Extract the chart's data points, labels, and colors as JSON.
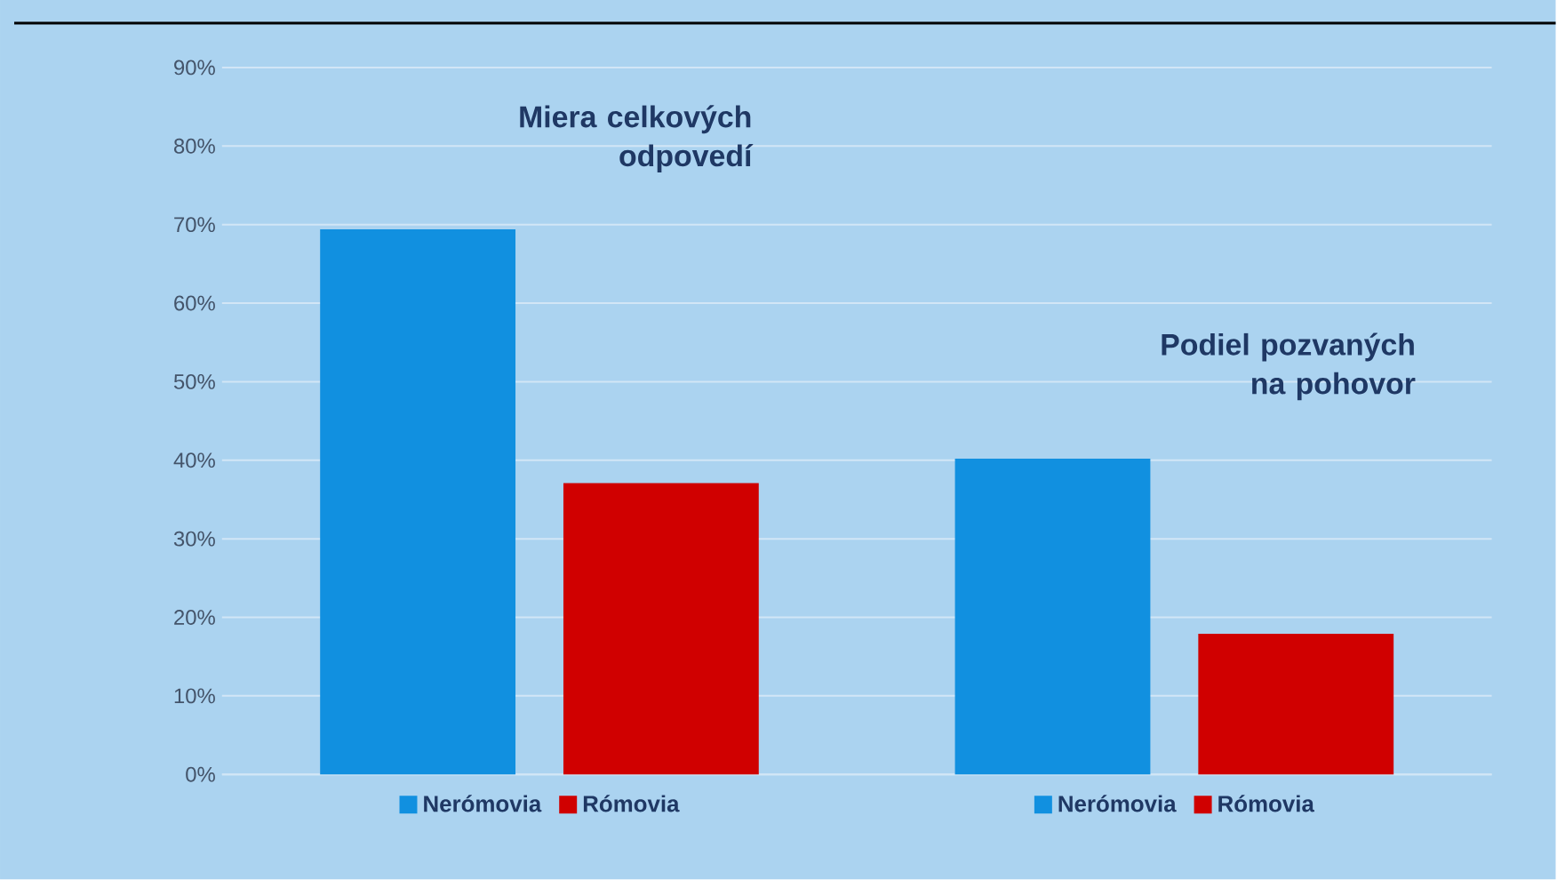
{
  "chart_data": {
    "type": "bar",
    "categories": [
      null,
      null
    ],
    "annotations": [
      "Miera celkových odpovedí",
      "Podiel pozvaných na pohovor"
    ],
    "series": [
      {
        "name": "Nerómovia",
        "color": "#1190e0",
        "values": [
          69.4,
          40.2
        ]
      },
      {
        "name": "Rómovia",
        "color": "#d00000",
        "values": [
          37.1,
          17.9
        ]
      }
    ],
    "ylim": [
      0,
      90
    ],
    "yticks": [
      {
        "value": 0,
        "label": "0%"
      },
      {
        "value": 10,
        "label": "10%"
      },
      {
        "value": 20,
        "label": "20%"
      },
      {
        "value": 30,
        "label": "30%"
      },
      {
        "value": 40,
        "label": "40%"
      },
      {
        "value": 50,
        "label": "50%"
      },
      {
        "value": 60,
        "label": "60%"
      },
      {
        "value": 70,
        "label": "70%"
      },
      {
        "value": 80,
        "label": "80%"
      },
      {
        "value": 90,
        "label": "90%"
      }
    ],
    "grid": "y",
    "legend": "bottom"
  }
}
